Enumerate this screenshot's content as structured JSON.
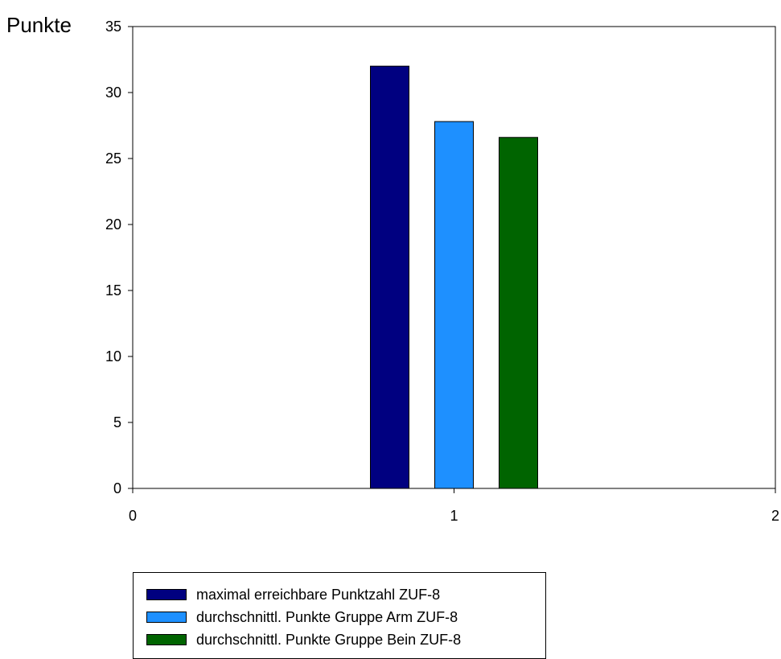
{
  "chart_data": {
    "type": "bar",
    "ylabel": "Punkte",
    "xlabel": "",
    "title": "",
    "ylim": [
      0,
      35
    ],
    "yticks": [
      0,
      5,
      10,
      15,
      20,
      25,
      30,
      35
    ],
    "xlim": [
      0,
      2
    ],
    "xticks": [
      0,
      1,
      2
    ],
    "grid": false,
    "legend_position": "bottom",
    "series": [
      {
        "name": "maximal erreichbare Punktzahl ZUF-8",
        "x": 1,
        "value": 32.0,
        "color": "#000080"
      },
      {
        "name": "durchschnittl. Punkte Gruppe Arm ZUF-8",
        "x": 1,
        "value": 27.8,
        "color": "#1E90FF"
      },
      {
        "name": "durchschnittl. Punkte Gruppe Bein ZUF-8",
        "x": 1,
        "value": 26.6,
        "color": "#006400"
      }
    ]
  }
}
